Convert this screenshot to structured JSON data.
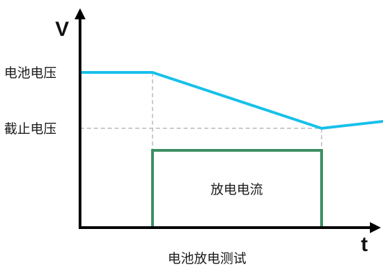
{
  "diagram": {
    "y_axis_label": "V",
    "x_axis_label": "t",
    "battery_voltage_label": "电池电压",
    "cutoff_voltage_label": "截止电压",
    "current_box_label": "放电电流",
    "caption": "电池放电测试"
  },
  "colors": {
    "voltage_line": "#17c0ea",
    "current_box": "#3c8f63",
    "axis": "#000000",
    "guide_lines": "#aaaaaa"
  }
}
